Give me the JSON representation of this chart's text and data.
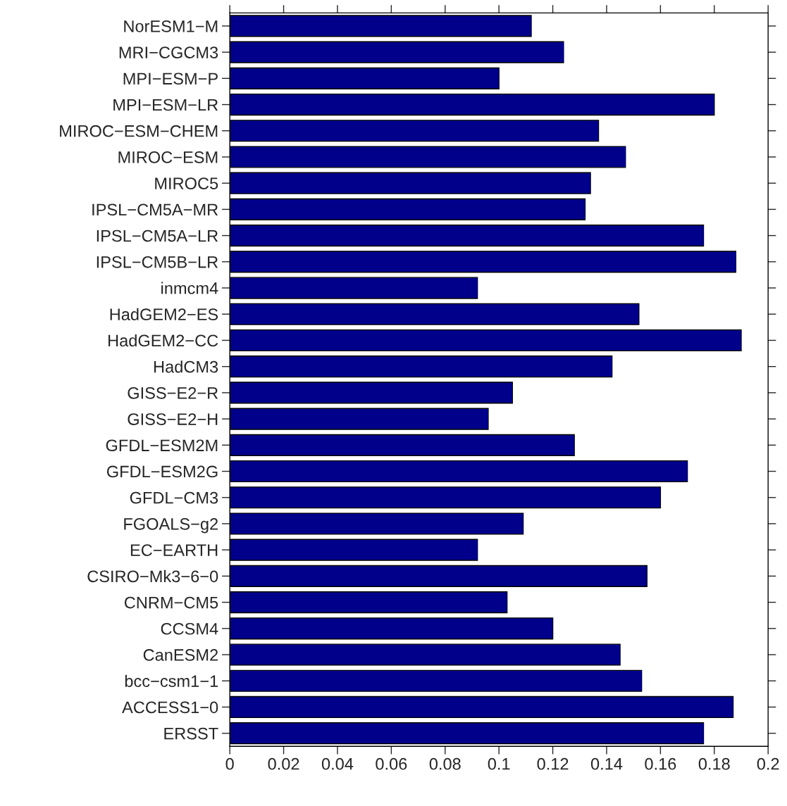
{
  "chart_data": {
    "type": "bar",
    "orientation": "horizontal",
    "categories": [
      "NorESM1−M",
      "MRI−CGCM3",
      "MPI−ESM−P",
      "MPI−ESM−LR",
      "MIROC−ESM−CHEM",
      "MIROC−ESM",
      "MIROC5",
      "IPSL−CM5A−MR",
      "IPSL−CM5A−LR",
      "IPSL−CM5B−LR",
      "inmcm4",
      "HadGEM2−ES",
      "HadGEM2−CC",
      "HadCM3",
      "GISS−E2−R",
      "GISS−E2−H",
      "GFDL−ESM2M",
      "GFDL−ESM2G",
      "GFDL−CM3",
      "FGOALS−g2",
      "EC−EARTH",
      "CSIRO−Mk3−6−0",
      "CNRM−CM5",
      "CCSM4",
      "CanESM2",
      "bcc−csm1−1",
      "ACCESS1−0",
      "ERSST"
    ],
    "values": [
      0.112,
      0.124,
      0.1,
      0.18,
      0.137,
      0.147,
      0.134,
      0.132,
      0.176,
      0.188,
      0.092,
      0.152,
      0.19,
      0.142,
      0.105,
      0.096,
      0.128,
      0.17,
      0.16,
      0.109,
      0.092,
      0.155,
      0.103,
      0.12,
      0.145,
      0.153,
      0.187,
      0.176
    ],
    "color": "#00008b",
    "xlim": [
      0,
      0.2
    ],
    "xticks": [
      0,
      0.02,
      0.04,
      0.06,
      0.08,
      0.1,
      0.12,
      0.14,
      0.16,
      0.18,
      0.2
    ],
    "grid": false,
    "legend": false
  }
}
